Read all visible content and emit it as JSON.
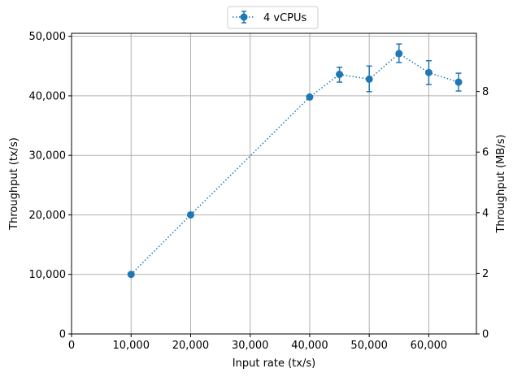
{
  "chart_data": {
    "type": "line",
    "xlabel": "Input rate (tx/s)",
    "ylabel": "Throughput (tx/s)",
    "ylabel_right": "Throughput (MB/s)",
    "xlim": [
      0,
      68000
    ],
    "ylim": [
      0,
      50500
    ],
    "ylim_right": [
      0,
      9.92
    ],
    "x_ticks": [
      0,
      10000,
      20000,
      30000,
      40000,
      50000,
      60000
    ],
    "x_tick_labels": [
      "0",
      "10,000",
      "20,000",
      "30,000",
      "40,000",
      "50,000",
      "60,000"
    ],
    "y_ticks": [
      0,
      10000,
      20000,
      30000,
      40000,
      50000
    ],
    "y_tick_labels": [
      "0",
      "10,000",
      "20,000",
      "30,000",
      "40,000",
      "50,000"
    ],
    "y_right_ticks": [
      0,
      2,
      4,
      6,
      8
    ],
    "y_right_tick_labels": [
      "0",
      "2",
      "4",
      "6",
      "8"
    ],
    "grid": true,
    "legend_position": "top-center",
    "series": [
      {
        "name": "4 vCPUs",
        "color": "#1f77b4",
        "linestyle": "dotted",
        "marker": "circle",
        "x": [
          10000,
          20000,
          40000,
          45000,
          50000,
          55000,
          60000,
          65000
        ],
        "y": [
          10000,
          20000,
          39800,
          43600,
          42800,
          47100,
          43900,
          42300
        ],
        "yerr_low": [
          0,
          0,
          0,
          1300,
          2100,
          1500,
          2000,
          1500
        ],
        "yerr_high": [
          0,
          0,
          0,
          1200,
          2200,
          1600,
          2000,
          1500
        ]
      }
    ]
  }
}
